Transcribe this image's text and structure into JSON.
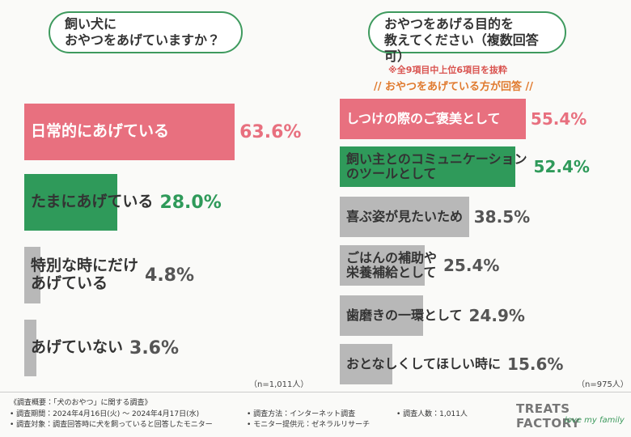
{
  "chart_data": [
    {
      "type": "bar",
      "orientation": "horizontal",
      "title": "飼い犬に\nおやつをあげていますか？",
      "categories": [
        "日常的にあげている",
        "たまにあげている",
        "特別な時にだけ\nあげている",
        "あげていない"
      ],
      "values": [
        63.6,
        28.0,
        4.8,
        3.6
      ],
      "value_labels": [
        "63.6%",
        "28.0%",
        "4.8%",
        "3.6%"
      ],
      "colors": [
        "#e8707f",
        "#2f9a5a",
        "#b8b8b8",
        "#b8b8b8"
      ],
      "note": "（n=1,011人）"
    },
    {
      "type": "bar",
      "orientation": "horizontal",
      "title": "おやつをあげる目的を\n教えてください（複数回答可）",
      "subtitle": "※全9項目中上位6項目を抜粋",
      "annotation": "// おやつをあげている方が回答 //",
      "categories": [
        "しつけの際のご褒美として",
        "飼い主とのコミュニケーション\nのツールとして",
        "喜ぶ姿が見たいため",
        "ごはんの補助や\n栄養補給として",
        "歯磨きの一環として",
        "おとなしくしてほしい時に"
      ],
      "values": [
        55.4,
        52.4,
        38.5,
        25.4,
        24.9,
        15.6
      ],
      "value_labels": [
        "55.4%",
        "52.4%",
        "38.5%",
        "25.4%",
        "24.9%",
        "15.6%"
      ],
      "colors": [
        "#e8707f",
        "#2f9a5a",
        "#b8b8b8",
        "#b8b8b8",
        "#b8b8b8",
        "#b8b8b8"
      ],
      "note": "（n=975人）"
    }
  ],
  "footer": {
    "survey_title": "《調査概要：「犬のおやつ」に関する調査》",
    "items": [
      "• 調査期間：2024年4月16日(火) 〜 2024年4月17日(水)",
      "• 調査方法：インターネット調査",
      "• 調査人数：1,011人",
      "• 調査対象：調査回答時に犬を飼っていると回答したモニター",
      "• モニター提供元：ゼネラルリサーチ"
    ],
    "brand": "TREATS FACTORY",
    "tagline": "love my family"
  }
}
